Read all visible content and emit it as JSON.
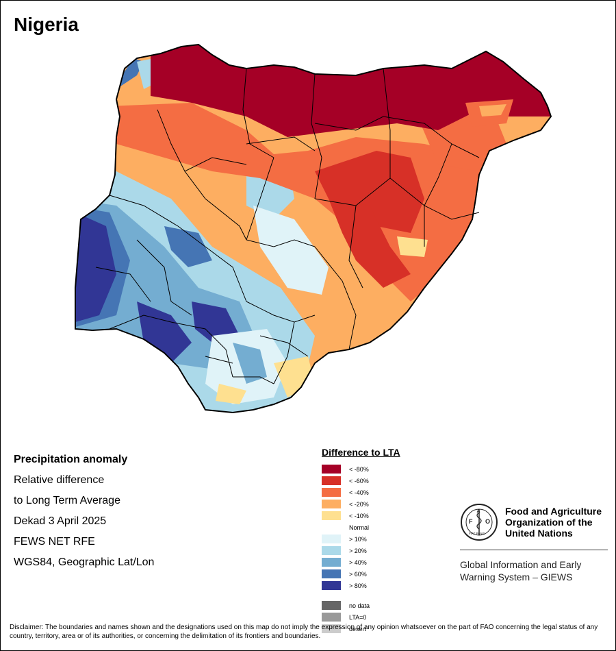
{
  "title": "Nigeria",
  "info": {
    "heading": "Precipitation anomaly",
    "line1": "Relative difference",
    "line2": "to Long Term Average",
    "period": "Dekad 3 April 2025",
    "source": "FEWS NET RFE",
    "projection": "WGS84, Geographic Lat/Lon"
  },
  "legend": {
    "title": "Difference to LTA",
    "classes": [
      {
        "label": "< -80%",
        "color": "#a50026"
      },
      {
        "label": "< -60%",
        "color": "#d73027"
      },
      {
        "label": "< -40%",
        "color": "#f46d43"
      },
      {
        "label": "< -20%",
        "color": "#fdae61"
      },
      {
        "label": "< -10%",
        "color": "#fee090"
      },
      {
        "label": "Normal",
        "color": "#ffffff"
      },
      {
        "label": "> 10%",
        "color": "#e0f3f8"
      },
      {
        "label": "> 20%",
        "color": "#abd9e9"
      },
      {
        "label": "> 40%",
        "color": "#74add1"
      },
      {
        "label": "> 60%",
        "color": "#4575b4"
      },
      {
        "label": "> 80%",
        "color": "#313695"
      }
    ],
    "extra": [
      {
        "label": "no data",
        "color": "#666666"
      },
      {
        "label": "LTA=0",
        "color": "#999999"
      },
      {
        "label": "desert",
        "color": "#cccccc"
      }
    ]
  },
  "fao": {
    "name": "Food and Agriculture Organization of the United Nations",
    "emblem_text": "FAO",
    "emblem_motto": "FIAT PANIS",
    "giews": "Global Information and Early Warning System – GIEWS"
  },
  "disclaimer": "Disclaimer: The boundaries and names shown and the designations used on this map do not imply the expression of any opinion whatsoever on the part of FAO concerning the legal status of any country, territory, area or of its authorities, or concerning the delimitation of its frontiers and boundaries."
}
